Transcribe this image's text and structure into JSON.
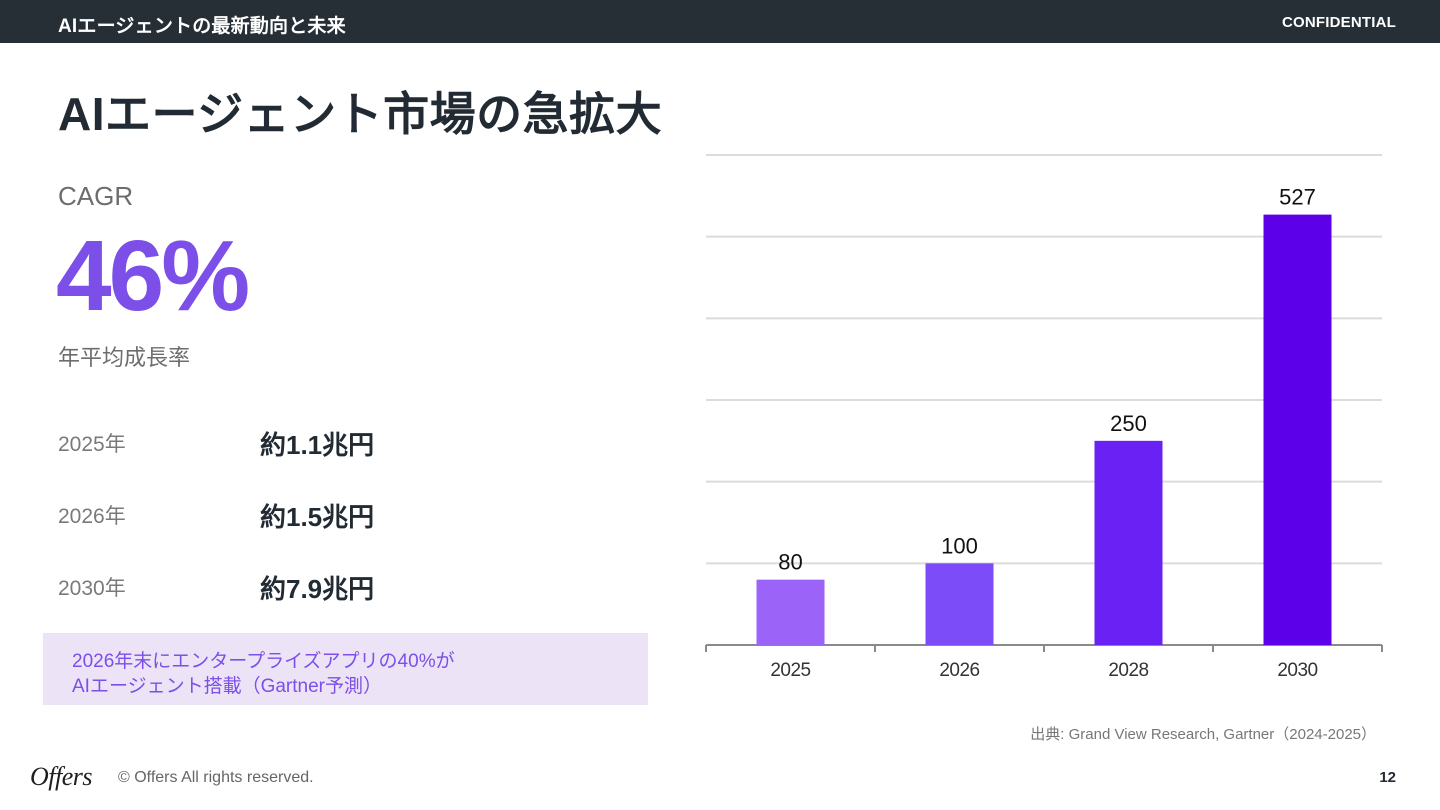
{
  "header": {
    "deck_title": "AIエージェントの最新動向と未来",
    "confidential": "CONFIDENTIAL"
  },
  "slide": {
    "title": "AIエージェント市場の急拡大",
    "cagr_label": "CAGR",
    "cagr_value": "46%",
    "cagr_desc": "年平均成長率",
    "stats": [
      {
        "year": "2025年",
        "amount": "約1.1兆円"
      },
      {
        "year": "2026年",
        "amount": "約1.5兆円"
      },
      {
        "year": "2030年",
        "amount": "約7.9兆円"
      }
    ],
    "callout_lines": [
      "2026年末にエンタープライズアプリの40%が",
      "AIエージェント搭載（Gartner予測）"
    ],
    "source": "出典: Grand View Research, Gartner（2024-2025）"
  },
  "chart_data": {
    "type": "bar",
    "categories": [
      "2025",
      "2026",
      "2028",
      "2030"
    ],
    "values": [
      80,
      100,
      250,
      527
    ],
    "ylim": [
      0,
      600
    ],
    "grid": true,
    "colors": [
      "#9b63f8",
      "#7c4cf8",
      "#6a22f4",
      "#5b00e8"
    ],
    "data_labels": true
  },
  "footer": {
    "logo": "Offers",
    "copyright": "© Offers All rights reserved.",
    "page_number": "12"
  }
}
